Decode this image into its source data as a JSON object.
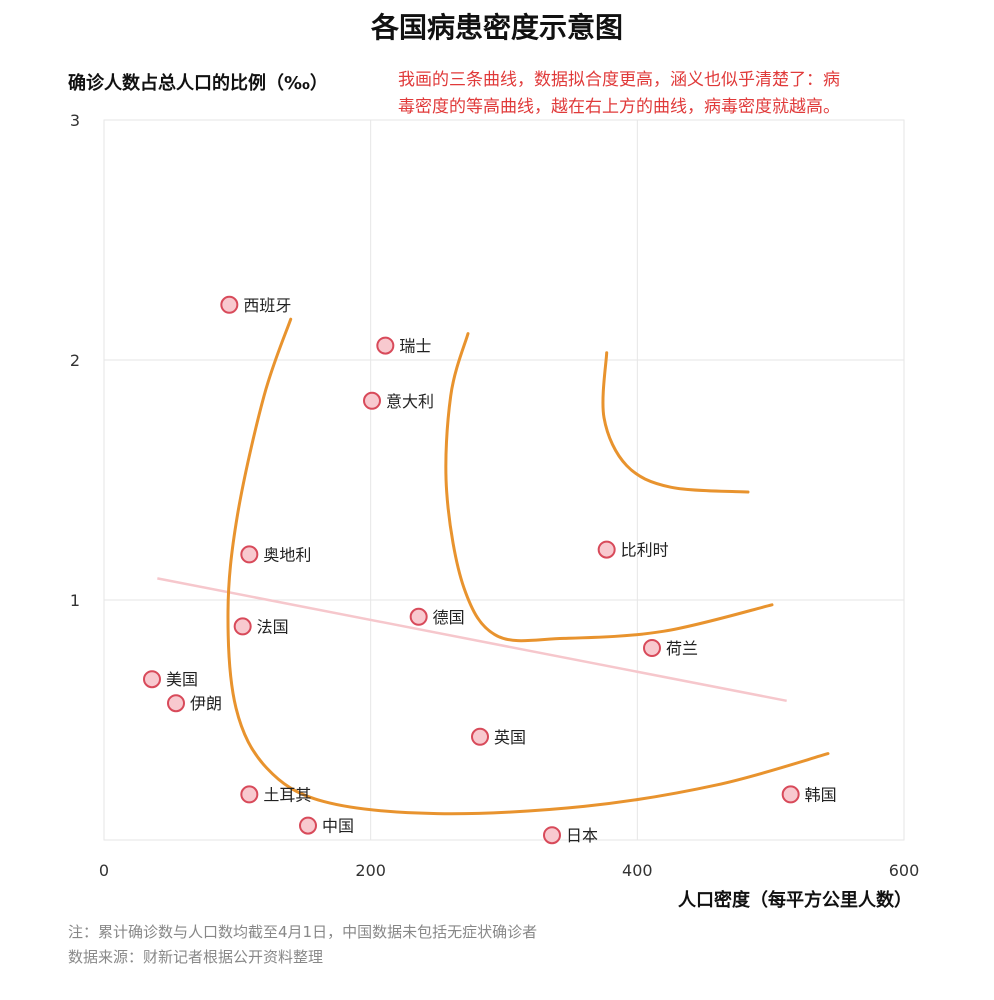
{
  "chart_data": {
    "type": "scatter",
    "title": "各国病患密度示意图",
    "ylabel": "确诊人数占总人口的比例（‰）",
    "xlabel": "人口密度（每平方公里人数）",
    "xlim": [
      0,
      600
    ],
    "ylim": [
      0,
      3
    ],
    "x_ticks": [
      "0",
      "200",
      "400",
      "600"
    ],
    "y_ticks": [
      "1",
      "2",
      "3"
    ],
    "grid": true,
    "points": [
      {
        "label": "西班牙",
        "x": 94,
        "y": 2.23
      },
      {
        "label": "瑞士",
        "x": 211,
        "y": 2.06
      },
      {
        "label": "意大利",
        "x": 201,
        "y": 1.83
      },
      {
        "label": "奥地利",
        "x": 109,
        "y": 1.19
      },
      {
        "label": "比利时",
        "x": 377,
        "y": 1.21
      },
      {
        "label": "法国",
        "x": 104,
        "y": 0.89
      },
      {
        "label": "德国",
        "x": 236,
        "y": 0.93
      },
      {
        "label": "荷兰",
        "x": 411,
        "y": 0.8
      },
      {
        "label": "美国",
        "x": 36,
        "y": 0.67
      },
      {
        "label": "伊朗",
        "x": 54,
        "y": 0.57
      },
      {
        "label": "英国",
        "x": 282,
        "y": 0.43
      },
      {
        "label": "土耳其",
        "x": 109,
        "y": 0.19
      },
      {
        "label": "韩国",
        "x": 515,
        "y": 0.19
      },
      {
        "label": "中国",
        "x": 153,
        "y": 0.06
      },
      {
        "label": "日本",
        "x": 336,
        "y": 0.02
      }
    ],
    "trend_line": [
      [
        40,
        1.09
      ],
      [
        512,
        0.58
      ]
    ],
    "curves": [
      [
        [
          140,
          2.17
        ],
        [
          120,
          1.85
        ],
        [
          100,
          1.35
        ],
        [
          93,
          0.95
        ],
        [
          99,
          0.55
        ],
        [
          122,
          0.3
        ],
        [
          165,
          0.16
        ],
        [
          250,
          0.11
        ],
        [
          360,
          0.14
        ],
        [
          460,
          0.23
        ],
        [
          543,
          0.36
        ]
      ],
      [
        [
          273,
          2.11
        ],
        [
          260,
          1.85
        ],
        [
          257,
          1.45
        ],
        [
          270,
          1.05
        ],
        [
          295,
          0.85
        ],
        [
          345,
          0.84
        ],
        [
          420,
          0.87
        ],
        [
          501,
          0.98
        ]
      ],
      [
        [
          377,
          2.03
        ],
        [
          375,
          1.76
        ],
        [
          392,
          1.56
        ],
        [
          425,
          1.47
        ],
        [
          483,
          1.45
        ]
      ]
    ]
  },
  "annotation": {
    "lines": [
      "我画的三条曲线，数据拟合度更高，涵义也似乎清楚了：病",
      "毒密度的等高曲线，越在右上方的曲线，病毒密度就越高。"
    ]
  },
  "footer": {
    "note": "注：累计确诊数与人口数均截至4月1日，中国数据未包括无症状确诊者",
    "source": "数据来源：财新记者根据公开资料整理"
  },
  "colors": {
    "point_fill": "#f8c9cf",
    "point_stroke": "#d84a5a",
    "curve": "#e8932e",
    "trend": "#f6c7cc",
    "annotation": "#e03a3a"
  }
}
